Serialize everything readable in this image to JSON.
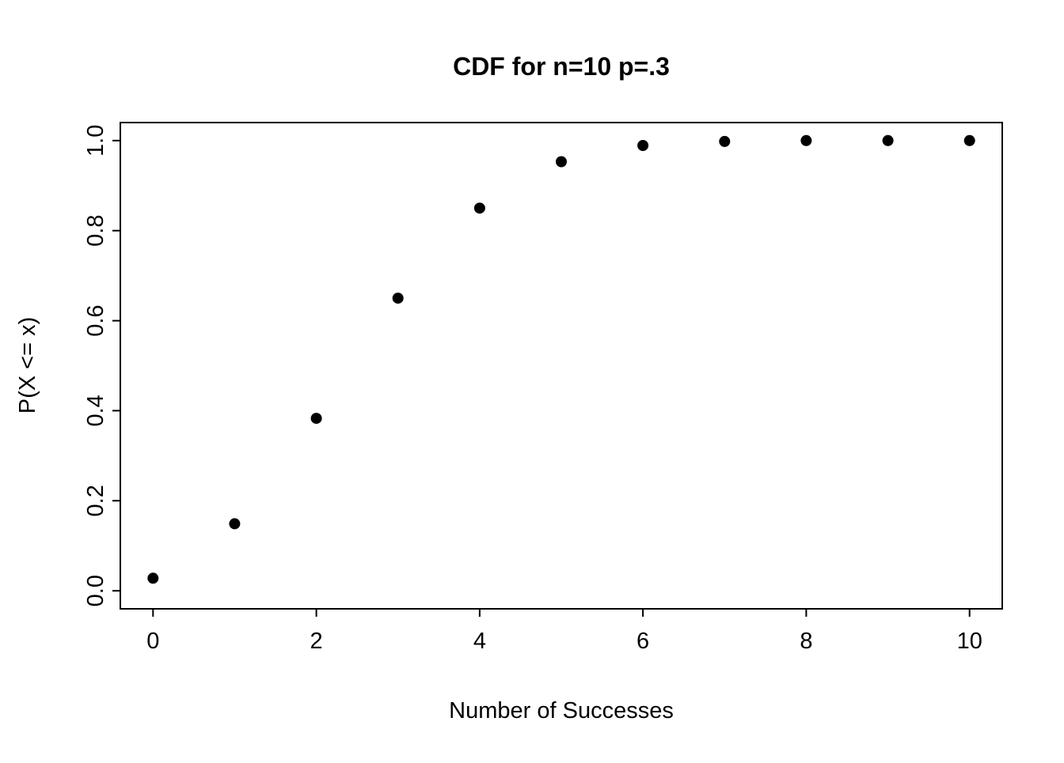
{
  "chart_data": {
    "type": "scatter",
    "title": "CDF for n=10 p=.3",
    "xlabel": "Number of Successes",
    "ylabel": "P(X <= x)",
    "x": [
      0,
      1,
      2,
      3,
      4,
      5,
      6,
      7,
      8,
      9,
      10
    ],
    "y": [
      0.028,
      0.149,
      0.383,
      0.65,
      0.85,
      0.953,
      0.989,
      0.998,
      1.0,
      1.0,
      1.0
    ],
    "x_ticks": [
      0,
      2,
      4,
      6,
      8,
      10
    ],
    "y_ticks": [
      0.0,
      0.2,
      0.4,
      0.6,
      0.8,
      1.0
    ],
    "xlim": [
      0,
      10
    ],
    "ylim": [
      0,
      1
    ],
    "grid": "off",
    "legend": "none",
    "point_color": "#000000",
    "box_color": "#000000",
    "background": "#ffffff"
  }
}
